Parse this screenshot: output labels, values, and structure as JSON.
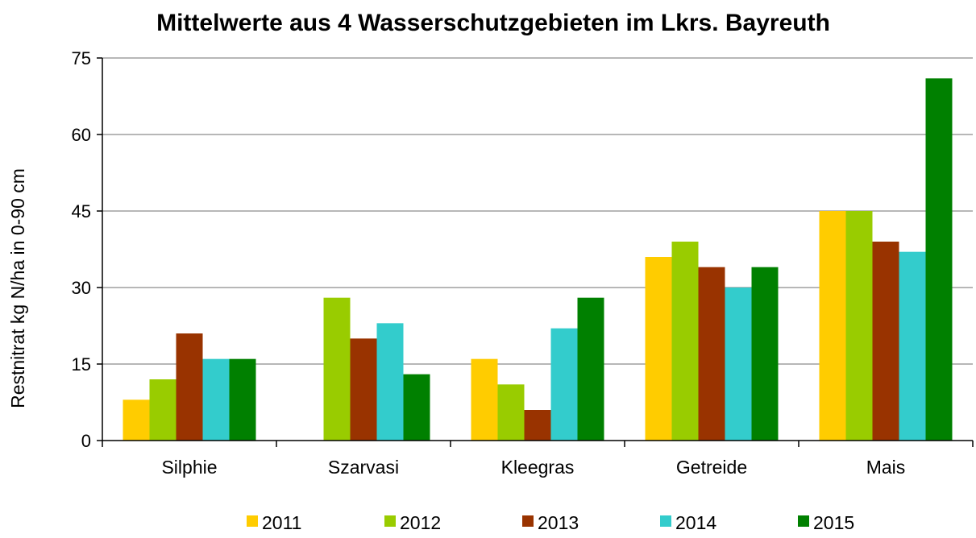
{
  "chart_data": {
    "type": "bar",
    "title": "Mittelwerte aus 4 Wasserschutzgebieten im Lkrs. Bayreuth",
    "xlabel": "",
    "ylabel": "Restnitrat kg N/ha in 0-90 cm",
    "ylim": [
      0,
      75
    ],
    "yticks": [
      0,
      15,
      30,
      45,
      60,
      75
    ],
    "grid": true,
    "legend_position": "bottom",
    "categories": [
      "Silphie",
      "Szarvasi",
      "Kleegras",
      "Getreide",
      "Mais"
    ],
    "series": [
      {
        "name": "2011",
        "color": "#ffcc00",
        "values": [
          8,
          0,
          16,
          36,
          45
        ]
      },
      {
        "name": "2012",
        "color": "#99cc00",
        "values": [
          12,
          28,
          11,
          39,
          45
        ]
      },
      {
        "name": "2013",
        "color": "#993300",
        "values": [
          21,
          20,
          6,
          34,
          39
        ]
      },
      {
        "name": "2014",
        "color": "#33cccc",
        "values": [
          16,
          23,
          22,
          30,
          37
        ]
      },
      {
        "name": "2015",
        "color": "#008000",
        "values": [
          16,
          13,
          28,
          34,
          71
        ]
      }
    ]
  }
}
